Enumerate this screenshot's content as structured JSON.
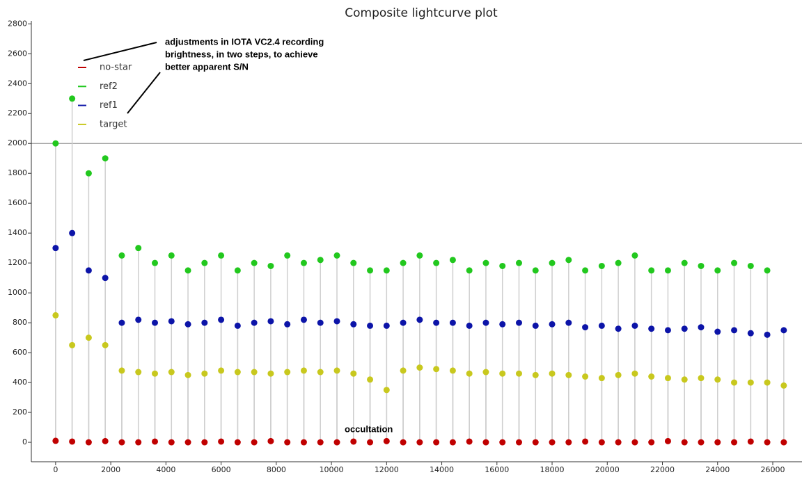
{
  "chart_data": {
    "type": "scatter",
    "title": "Composite lightcurve plot",
    "annotation_lines": [
      "adjustments in IOTA VC2.4 recording",
      "brightness, in two steps, to achieve",
      "better apparent S/N"
    ],
    "occultation_label": "occultation",
    "x": [
      0,
      600,
      1200,
      1800,
      2400,
      3000,
      3600,
      4200,
      4800,
      5400,
      6000,
      6600,
      7200,
      7800,
      8400,
      9000,
      9600,
      10200,
      10800,
      11400,
      12000,
      12600,
      13200,
      13800,
      14400,
      15000,
      15600,
      16200,
      16800,
      17400,
      18000,
      18600,
      19200,
      19800,
      20400,
      21000,
      21600,
      22200,
      22800,
      23400,
      24000,
      24600,
      25200,
      25800,
      26400
    ],
    "series": [
      {
        "name": "no-star",
        "color": "#c00000",
        "values": [
          10,
          5,
          0,
          8,
          0,
          0,
          5,
          0,
          0,
          0,
          5,
          0,
          0,
          8,
          0,
          0,
          0,
          0,
          5,
          0,
          8,
          0,
          0,
          0,
          0,
          5,
          0,
          0,
          0,
          0,
          0,
          0,
          5,
          0,
          0,
          0,
          0,
          8,
          0,
          0,
          0,
          0,
          5,
          0,
          0
        ]
      },
      {
        "name": "ref2",
        "color": "#22c81e",
        "values": [
          2000,
          2300,
          1800,
          1900,
          1250,
          1300,
          1200,
          1250,
          1150,
          1200,
          1250,
          1150,
          1200,
          1180,
          1250,
          1200,
          1220,
          1250,
          1200,
          1150,
          1150,
          1200,
          1250,
          1200,
          1220,
          1150,
          1200,
          1180,
          1200,
          1150,
          1200,
          1220,
          1150,
          1180,
          1200,
          1250,
          1150,
          1150,
          1200,
          1180,
          1150,
          1200,
          1180,
          1150,
          null
        ]
      },
      {
        "name": "ref1",
        "color": "#0c14a8",
        "values": [
          1300,
          1400,
          1150,
          1100,
          800,
          820,
          800,
          810,
          790,
          800,
          820,
          780,
          800,
          810,
          790,
          820,
          800,
          810,
          790,
          780,
          780,
          800,
          820,
          800,
          800,
          780,
          800,
          790,
          800,
          780,
          790,
          800,
          770,
          780,
          760,
          780,
          760,
          750,
          760,
          770,
          740,
          750,
          730,
          720,
          750
        ]
      },
      {
        "name": "target",
        "color": "#c8c81e",
        "values": [
          850,
          650,
          700,
          650,
          480,
          470,
          460,
          470,
          450,
          460,
          480,
          470,
          470,
          460,
          470,
          480,
          470,
          480,
          460,
          420,
          350,
          480,
          500,
          490,
          480,
          460,
          470,
          460,
          460,
          450,
          460,
          450,
          440,
          430,
          450,
          460,
          440,
          430,
          420,
          430,
          420,
          400,
          400,
          400,
          380
        ]
      }
    ],
    "legend": "upper left",
    "hline": 2000,
    "xlim": [
      -880,
      27060
    ],
    "ylim": [
      -130,
      2820
    ],
    "xticks": [
      0,
      2000,
      4000,
      6000,
      8000,
      10000,
      12000,
      14000,
      16000,
      18000,
      20000,
      22000,
      24000,
      26000
    ],
    "yticks": [
      0,
      200,
      400,
      600,
      800,
      1000,
      1200,
      1400,
      1600,
      1800,
      2000,
      2200,
      2400,
      2600,
      2800
    ]
  }
}
